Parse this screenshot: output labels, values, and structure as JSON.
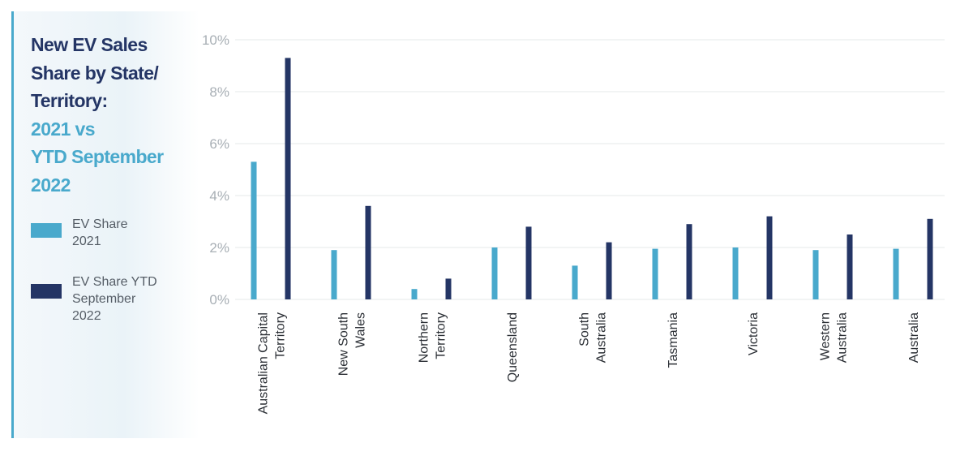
{
  "title": {
    "line1": "New EV Sales",
    "line2": "Share by State/",
    "line3": "Territory:",
    "line4": "2021 vs",
    "line5": "YTD September",
    "line6": "2022"
  },
  "legend": [
    {
      "line1": "EV Share",
      "line2": "2021",
      "line3": ""
    },
    {
      "line1": "EV Share YTD",
      "line2": "September",
      "line3": "2022"
    }
  ],
  "colors": {
    "series_2021": "#49a9cc",
    "series_ytd_2022": "#243565",
    "title_dark": "#243565",
    "title_accent": "#49a9cc",
    "gridline": "#e6e8ea"
  },
  "chart_data": {
    "type": "bar",
    "categories": [
      [
        "Australian Capital",
        "Territory"
      ],
      [
        "New South",
        "Wales"
      ],
      [
        "Northern",
        "Territory"
      ],
      [
        "Queensland"
      ],
      [
        "South",
        "Australia"
      ],
      [
        "Tasmania"
      ],
      [
        "Victoria"
      ],
      [
        "Western",
        "Australia"
      ],
      [
        "Australia"
      ]
    ],
    "series": [
      {
        "name": "EV Share 2021",
        "values": [
          5.3,
          1.9,
          0.4,
          2.0,
          1.3,
          1.95,
          2.0,
          1.9,
          1.95
        ]
      },
      {
        "name": "EV Share YTD September 2022",
        "values": [
          9.3,
          3.6,
          0.8,
          2.8,
          2.2,
          2.9,
          3.2,
          2.5,
          3.1
        ]
      }
    ],
    "yticks": [
      "0%",
      "2%",
      "4%",
      "6%",
      "8%",
      "10%"
    ],
    "ytick_values": [
      0,
      2,
      4,
      6,
      8,
      10
    ],
    "ylim": [
      0,
      10
    ],
    "grid": true,
    "legend_position": "left"
  }
}
